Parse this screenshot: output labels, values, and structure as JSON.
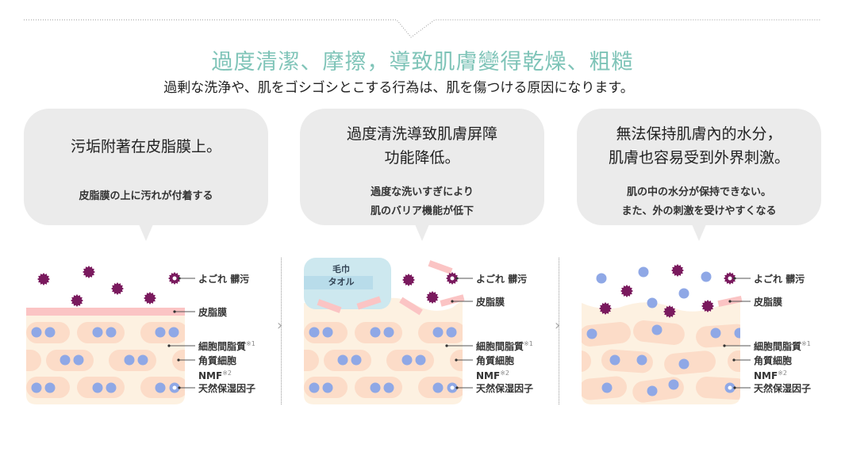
{
  "header": {
    "title": "過度清潔、摩擦，導致肌膚變得乾燥、粗糙",
    "subtitle": "過剰な洗浄や、肌をゴシゴシとこする行為は、肌を傷つける原因になります。"
  },
  "colors": {
    "title": "#7fc4b8",
    "dirt": "#7a1a5e",
    "sebum": "#fbc4c4",
    "skin": "#fdf1e1",
    "cell": "#fcdcc8",
    "nmf": "#8fa8e6",
    "towel": "#cde8ef",
    "bubble": "#ebebeb"
  },
  "panels": [
    {
      "bubble_main": [
        "污垢附著在皮脂膜上。"
      ],
      "bubble_sub": [
        "皮脂膜の上に汚れが付着する"
      ],
      "labels": {
        "dirt": "よごれ 髒污",
        "sebum": "皮脂膜",
        "lipid": "細胞間脂質",
        "lipid_sup": "※1",
        "corneocyte": "角質細胞",
        "nmf": "NMF",
        "nmf_sup": "※2",
        "nmf_name": "天然保湿因子"
      }
    },
    {
      "bubble_main": [
        "過度清洗導致肌膚屏障",
        "功能降低。"
      ],
      "bubble_sub": [
        "過度な洗いすぎにより",
        "肌のバリア機能が低下"
      ],
      "towel": [
        "毛巾",
        "タオル"
      ],
      "labels": {
        "dirt": "よごれ 髒污",
        "sebum": "皮脂膜",
        "lipid": "細胞間脂質",
        "lipid_sup": "※1",
        "corneocyte": "角質細胞",
        "nmf": "NMF",
        "nmf_sup": "※2",
        "nmf_name": "天然保湿因子"
      }
    },
    {
      "bubble_main": [
        "無法保持肌膚內的水分，",
        "肌膚也容易受到外界刺激。"
      ],
      "bubble_sub": [
        "肌の中の水分が保持できない。",
        "また、外の刺激を受けやすくなる"
      ],
      "labels": {
        "dirt": "よごれ 髒污",
        "sebum": "皮脂膜",
        "lipid": "細胞間脂質",
        "lipid_sup": "※1",
        "corneocyte": "角質細胞",
        "nmf": "NMF",
        "nmf_sup": "※2",
        "nmf_name": "天然保湿因子"
      }
    }
  ]
}
